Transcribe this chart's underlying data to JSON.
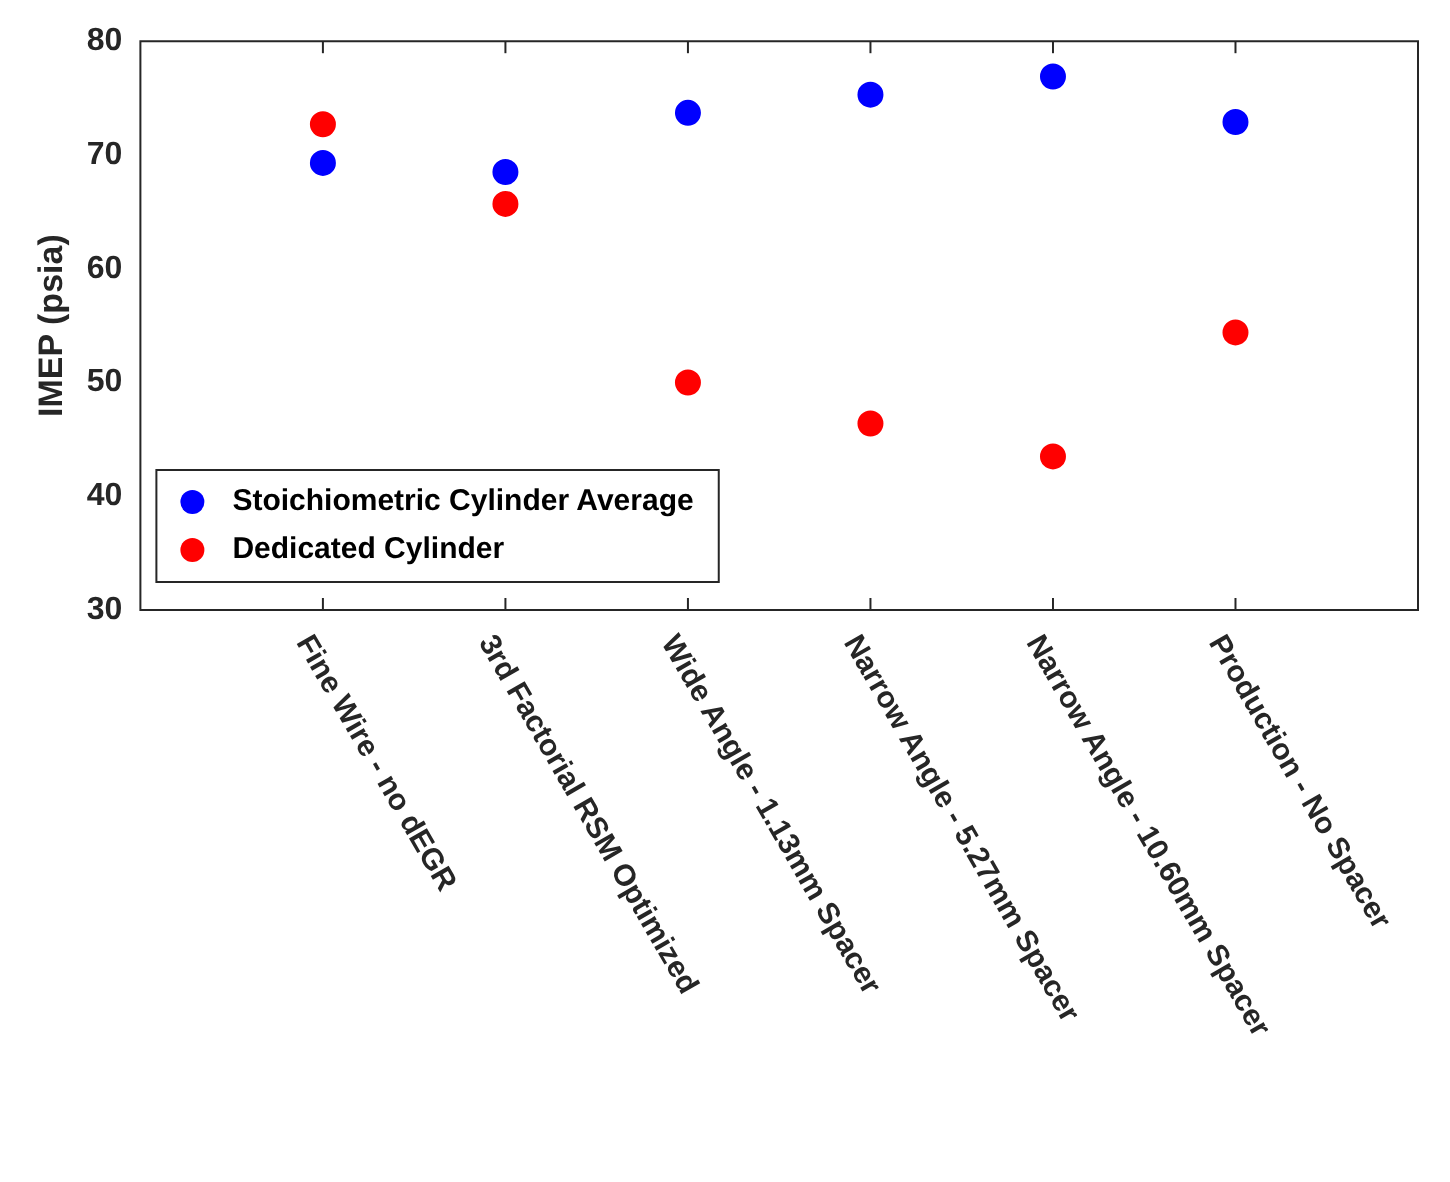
{
  "chart_data": {
    "type": "scatter",
    "ylabel": "IMEP (psia)",
    "categories": [
      "Fine Wire - no dEGR",
      "3rd Factorial RSM Optimized",
      "Wide Angle - 1.13mm Spacer",
      "Narrow Angle - 5.27mm Spacer",
      "Narrow Angle - 10.60mm Spacer",
      "Production - No Spacer"
    ],
    "series": [
      {
        "name": "Stoichiometric Cylinder Average",
        "color": "#0000ff",
        "values": [
          69.3,
          68.5,
          73.7,
          75.3,
          76.9,
          72.9
        ]
      },
      {
        "name": "Dedicated Cylinder",
        "color": "#ff0000",
        "values": [
          72.7,
          65.7,
          50.0,
          46.4,
          43.5,
          54.4
        ]
      }
    ],
    "ylim": [
      30,
      80
    ],
    "yticks": [
      30,
      40,
      50,
      60,
      70,
      80
    ],
    "grid": false,
    "legend": "bottom left",
    "marker": "circle"
  }
}
